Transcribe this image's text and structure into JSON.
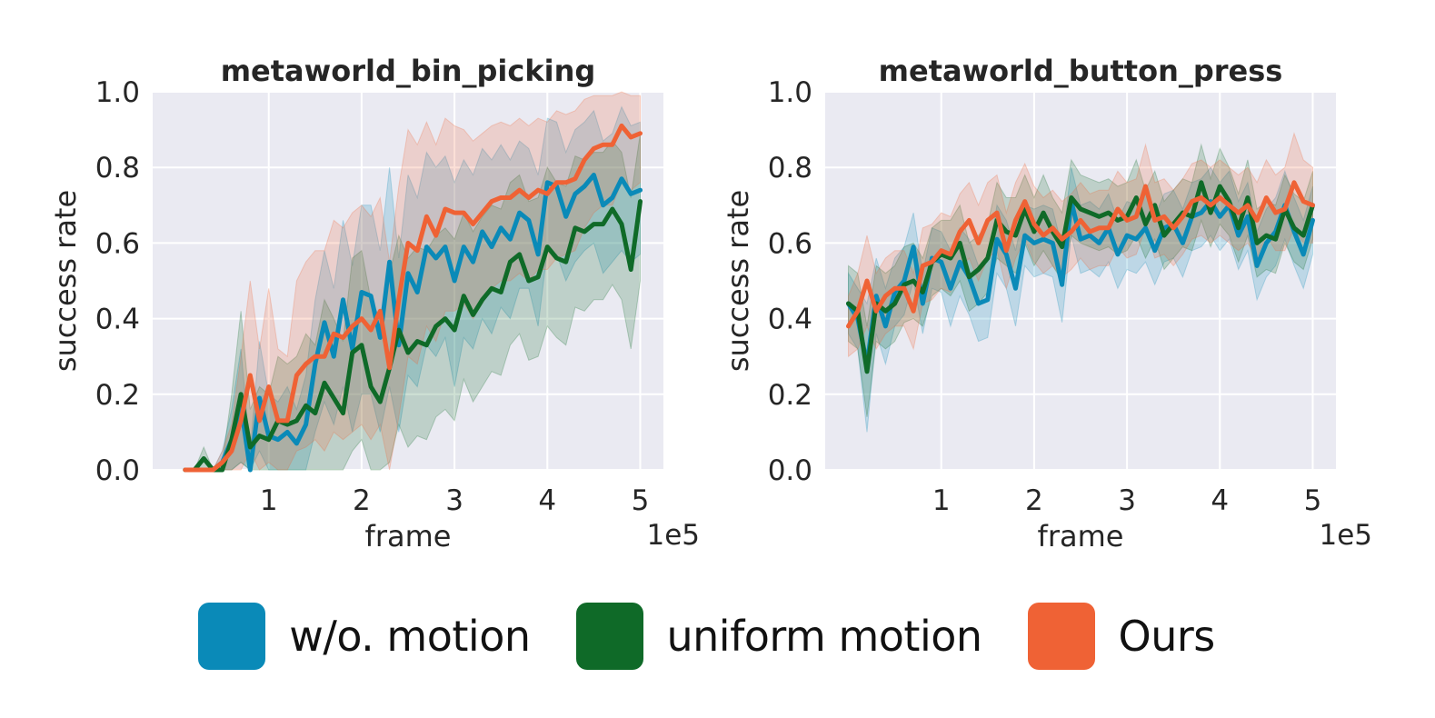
{
  "legend": {
    "items": [
      {
        "label": "w/o. motion",
        "color": "#0a8ab8"
      },
      {
        "label": "uniform motion",
        "color": "#0f6a28"
      },
      {
        "label": "Ours",
        "color": "#ef6235"
      }
    ]
  },
  "chart_data": [
    {
      "type": "line",
      "title": "metaworld_bin_picking",
      "xlabel": "frame",
      "ylabel": "success rate",
      "x_multiplier_label": "1e5",
      "xlim": [
        -0.25,
        5.25
      ],
      "ylim": [
        0.0,
        1.0
      ],
      "xticks": [
        "1",
        "2",
        "3",
        "4",
        "5"
      ],
      "yticks": [
        "0.0",
        "0.2",
        "0.4",
        "0.6",
        "0.8",
        "1.0"
      ],
      "grid": true,
      "x": [
        0.1,
        0.2,
        0.3,
        0.4,
        0.5,
        0.6,
        0.7,
        0.8,
        0.9,
        1.0,
        1.1,
        1.2,
        1.3,
        1.4,
        1.5,
        1.6,
        1.7,
        1.8,
        1.9,
        2.0,
        2.1,
        2.2,
        2.3,
        2.4,
        2.5,
        2.6,
        2.7,
        2.8,
        2.9,
        3.0,
        3.1,
        3.2,
        3.3,
        3.4,
        3.5,
        3.6,
        3.7,
        3.8,
        3.9,
        4.0,
        4.1,
        4.2,
        4.3,
        4.4,
        4.5,
        4.6,
        4.7,
        4.8,
        4.9,
        5.0
      ],
      "series": [
        {
          "name": "w/o. motion",
          "color": "#0a8ab8",
          "values": [
            0,
            0,
            0,
            0,
            0.02,
            0.08,
            0.17,
            0,
            0.19,
            0.09,
            0.08,
            0.1,
            0.07,
            0.12,
            0.28,
            0.39,
            0.3,
            0.45,
            0.32,
            0.47,
            0.46,
            0.35,
            0.55,
            0.33,
            0.52,
            0.47,
            0.59,
            0.56,
            0.59,
            0.5,
            0.59,
            0.55,
            0.63,
            0.59,
            0.64,
            0.61,
            0.68,
            0.66,
            0.57,
            0.76,
            0.75,
            0.67,
            0.73,
            0.75,
            0.78,
            0.7,
            0.72,
            0.77,
            0.73,
            0.74
          ],
          "lower": [
            0,
            0,
            0,
            0,
            0,
            0,
            0.02,
            0,
            0.05,
            0,
            0,
            0,
            0,
            0,
            0.1,
            0.18,
            0.12,
            0.22,
            0.1,
            0.2,
            0.2,
            0.1,
            0.22,
            0.1,
            0.25,
            0.22,
            0.33,
            0.3,
            0.35,
            0.22,
            0.35,
            0.32,
            0.4,
            0.36,
            0.43,
            0.4,
            0.48,
            0.48,
            0.38,
            0.58,
            0.57,
            0.5,
            0.55,
            0.58,
            0.6,
            0.52,
            0.55,
            0.58,
            0.55,
            0.57
          ],
          "upper": [
            0,
            0,
            0,
            0,
            0.05,
            0.16,
            0.32,
            0.05,
            0.34,
            0.2,
            0.18,
            0.22,
            0.16,
            0.25,
            0.45,
            0.58,
            0.48,
            0.66,
            0.54,
            0.7,
            0.7,
            0.58,
            0.8,
            0.56,
            0.78,
            0.72,
            0.84,
            0.8,
            0.83,
            0.76,
            0.82,
            0.78,
            0.85,
            0.82,
            0.86,
            0.82,
            0.87,
            0.85,
            0.78,
            0.93,
            0.92,
            0.84,
            0.9,
            0.92,
            0.95,
            0.87,
            0.89,
            0.96,
            0.91,
            0.92
          ]
        },
        {
          "name": "uniform motion",
          "color": "#0f6a28",
          "values": [
            0,
            0,
            0.03,
            0,
            0,
            0.08,
            0.2,
            0.06,
            0.09,
            0.08,
            0.13,
            0.12,
            0.13,
            0.17,
            0.15,
            0.23,
            0.19,
            0.15,
            0.31,
            0.33,
            0.22,
            0.18,
            0.27,
            0.37,
            0.31,
            0.34,
            0.33,
            0.38,
            0.4,
            0.37,
            0.46,
            0.41,
            0.45,
            0.48,
            0.47,
            0.55,
            0.57,
            0.5,
            0.51,
            0.59,
            0.56,
            0.55,
            0.64,
            0.63,
            0.65,
            0.65,
            0.69,
            0.65,
            0.53,
            0.71
          ],
          "lower": [
            0,
            0,
            0,
            0,
            0,
            0,
            0.02,
            0,
            0,
            0,
            0,
            0,
            0,
            0,
            0,
            0,
            0,
            0,
            0.05,
            0.08,
            0,
            0,
            0.02,
            0.12,
            0.06,
            0.09,
            0.08,
            0.14,
            0.16,
            0.13,
            0.24,
            0.18,
            0.22,
            0.26,
            0.25,
            0.33,
            0.36,
            0.29,
            0.3,
            0.38,
            0.35,
            0.33,
            0.43,
            0.42,
            0.45,
            0.45,
            0.49,
            0.45,
            0.32,
            0.5
          ],
          "upper": [
            0,
            0,
            0.06,
            0,
            0.02,
            0.2,
            0.42,
            0.16,
            0.22,
            0.2,
            0.3,
            0.28,
            0.3,
            0.36,
            0.33,
            0.45,
            0.4,
            0.34,
            0.56,
            0.58,
            0.45,
            0.4,
            0.52,
            0.62,
            0.56,
            0.59,
            0.58,
            0.62,
            0.64,
            0.61,
            0.68,
            0.63,
            0.67,
            0.7,
            0.69,
            0.76,
            0.78,
            0.71,
            0.72,
            0.8,
            0.76,
            0.75,
            0.83,
            0.82,
            0.84,
            0.84,
            0.87,
            0.84,
            0.72,
            0.89
          ]
        },
        {
          "name": "Ours",
          "color": "#ef6235",
          "values": [
            0,
            0,
            0,
            0,
            0.02,
            0.05,
            0.13,
            0.25,
            0.13,
            0.22,
            0.13,
            0.13,
            0.25,
            0.28,
            0.3,
            0.3,
            0.36,
            0.35,
            0.38,
            0.4,
            0.37,
            0.42,
            0.27,
            0.45,
            0.6,
            0.58,
            0.67,
            0.62,
            0.69,
            0.68,
            0.68,
            0.65,
            0.68,
            0.71,
            0.72,
            0.72,
            0.74,
            0.72,
            0.74,
            0.73,
            0.76,
            0.76,
            0.77,
            0.82,
            0.85,
            0.86,
            0.86,
            0.91,
            0.88,
            0.89
          ],
          "lower": [
            0,
            0,
            0,
            0,
            0,
            0,
            0,
            0.05,
            0,
            0.02,
            0,
            0,
            0.05,
            0.06,
            0.08,
            0.05,
            0.1,
            0.08,
            0.1,
            0.12,
            0.08,
            0.12,
            0,
            0.14,
            0.3,
            0.28,
            0.38,
            0.34,
            0.42,
            0.42,
            0.44,
            0.4,
            0.44,
            0.48,
            0.5,
            0.5,
            0.52,
            0.5,
            0.53,
            0.53,
            0.56,
            0.57,
            0.58,
            0.64,
            0.68,
            0.7,
            0.7,
            0.76,
            0.74,
            0.76
          ],
          "upper": [
            0,
            0,
            0,
            0,
            0.05,
            0.12,
            0.3,
            0.5,
            0.32,
            0.48,
            0.32,
            0.3,
            0.5,
            0.55,
            0.58,
            0.58,
            0.66,
            0.64,
            0.68,
            0.7,
            0.67,
            0.72,
            0.55,
            0.75,
            0.9,
            0.86,
            0.92,
            0.86,
            0.93,
            0.91,
            0.9,
            0.87,
            0.89,
            0.91,
            0.92,
            0.91,
            0.93,
            0.91,
            0.93,
            0.92,
            0.95,
            0.94,
            0.95,
            0.98,
            0.99,
            0.99,
            0.99,
            1.0,
            0.99,
            0.99
          ]
        }
      ]
    },
    {
      "type": "line",
      "title": "metaworld_button_press",
      "xlabel": "frame",
      "ylabel": "success rate",
      "x_multiplier_label": "1e5",
      "xlim": [
        -0.25,
        5.25
      ],
      "ylim": [
        0.0,
        1.0
      ],
      "xticks": [
        "1",
        "2",
        "3",
        "4",
        "5"
      ],
      "yticks": [
        "0.0",
        "0.2",
        "0.4",
        "0.6",
        "0.8",
        "1.0"
      ],
      "grid": true,
      "x": [
        0.0,
        0.1,
        0.2,
        0.3,
        0.4,
        0.5,
        0.6,
        0.7,
        0.8,
        0.9,
        1.0,
        1.1,
        1.2,
        1.3,
        1.4,
        1.5,
        1.6,
        1.7,
        1.8,
        1.9,
        2.0,
        2.1,
        2.2,
        2.3,
        2.4,
        2.5,
        2.6,
        2.7,
        2.8,
        2.9,
        3.0,
        3.1,
        3.2,
        3.3,
        3.4,
        3.5,
        3.6,
        3.7,
        3.8,
        3.9,
        4.0,
        4.1,
        4.2,
        4.3,
        4.4,
        4.5,
        4.6,
        4.7,
        4.8,
        4.9,
        5.0
      ],
      "series": [
        {
          "name": "w/o. motion",
          "color": "#0a8ab8",
          "values": [
            0.44,
            0.4,
            0.28,
            0.46,
            0.38,
            0.47,
            0.5,
            0.59,
            0.44,
            0.56,
            0.55,
            0.48,
            0.55,
            0.51,
            0.44,
            0.45,
            0.61,
            0.57,
            0.48,
            0.62,
            0.6,
            0.61,
            0.6,
            0.49,
            0.71,
            0.61,
            0.62,
            0.6,
            0.64,
            0.57,
            0.62,
            0.61,
            0.64,
            0.58,
            0.64,
            0.65,
            0.6,
            0.67,
            0.68,
            0.71,
            0.67,
            0.7,
            0.62,
            0.67,
            0.54,
            0.6,
            0.63,
            0.7,
            0.63,
            0.57,
            0.66
          ],
          "lower": [
            0.36,
            0.32,
            0.1,
            0.36,
            0.28,
            0.38,
            0.41,
            0.5,
            0.36,
            0.48,
            0.47,
            0.38,
            0.46,
            0.41,
            0.34,
            0.35,
            0.52,
            0.48,
            0.38,
            0.54,
            0.51,
            0.52,
            0.51,
            0.39,
            0.62,
            0.52,
            0.53,
            0.51,
            0.55,
            0.48,
            0.53,
            0.52,
            0.55,
            0.49,
            0.55,
            0.56,
            0.51,
            0.58,
            0.59,
            0.62,
            0.58,
            0.61,
            0.53,
            0.58,
            0.45,
            0.51,
            0.54,
            0.61,
            0.54,
            0.48,
            0.57
          ],
          "upper": [
            0.52,
            0.48,
            0.44,
            0.56,
            0.48,
            0.56,
            0.59,
            0.68,
            0.52,
            0.64,
            0.63,
            0.58,
            0.64,
            0.61,
            0.54,
            0.55,
            0.7,
            0.66,
            0.58,
            0.7,
            0.69,
            0.7,
            0.69,
            0.59,
            0.8,
            0.7,
            0.71,
            0.69,
            0.73,
            0.66,
            0.71,
            0.7,
            0.73,
            0.67,
            0.73,
            0.74,
            0.69,
            0.76,
            0.77,
            0.8,
            0.76,
            0.79,
            0.71,
            0.76,
            0.63,
            0.69,
            0.72,
            0.79,
            0.72,
            0.66,
            0.75
          ]
        },
        {
          "name": "uniform motion",
          "color": "#0f6a28",
          "values": [
            0.44,
            0.42,
            0.26,
            0.44,
            0.42,
            0.44,
            0.49,
            0.5,
            0.47,
            0.55,
            0.57,
            0.56,
            0.6,
            0.51,
            0.53,
            0.56,
            0.66,
            0.63,
            0.62,
            0.69,
            0.63,
            0.68,
            0.63,
            0.59,
            0.72,
            0.69,
            0.68,
            0.67,
            0.68,
            0.66,
            0.67,
            0.72,
            0.65,
            0.7,
            0.62,
            0.65,
            0.68,
            0.67,
            0.76,
            0.68,
            0.75,
            0.71,
            0.64,
            0.72,
            0.6,
            0.62,
            0.61,
            0.69,
            0.64,
            0.62,
            0.7
          ],
          "lower": [
            0.34,
            0.32,
            0.14,
            0.34,
            0.32,
            0.34,
            0.39,
            0.4,
            0.38,
            0.46,
            0.48,
            0.46,
            0.5,
            0.42,
            0.44,
            0.47,
            0.56,
            0.54,
            0.52,
            0.6,
            0.54,
            0.58,
            0.54,
            0.5,
            0.62,
            0.6,
            0.59,
            0.58,
            0.59,
            0.57,
            0.58,
            0.62,
            0.56,
            0.61,
            0.53,
            0.56,
            0.59,
            0.58,
            0.66,
            0.59,
            0.65,
            0.62,
            0.55,
            0.62,
            0.51,
            0.53,
            0.52,
            0.6,
            0.55,
            0.53,
            0.61
          ],
          "upper": [
            0.54,
            0.52,
            0.38,
            0.54,
            0.52,
            0.54,
            0.59,
            0.6,
            0.56,
            0.64,
            0.66,
            0.66,
            0.7,
            0.6,
            0.62,
            0.65,
            0.76,
            0.72,
            0.72,
            0.78,
            0.72,
            0.78,
            0.72,
            0.68,
            0.82,
            0.78,
            0.77,
            0.76,
            0.77,
            0.75,
            0.76,
            0.82,
            0.74,
            0.79,
            0.71,
            0.74,
            0.77,
            0.76,
            0.86,
            0.77,
            0.85,
            0.8,
            0.73,
            0.82,
            0.69,
            0.71,
            0.7,
            0.78,
            0.73,
            0.71,
            0.79
          ]
        },
        {
          "name": "Ours",
          "color": "#ef6235",
          "values": [
            0.38,
            0.42,
            0.5,
            0.42,
            0.46,
            0.48,
            0.48,
            0.42,
            0.54,
            0.55,
            0.58,
            0.57,
            0.63,
            0.66,
            0.6,
            0.66,
            0.68,
            0.58,
            0.66,
            0.71,
            0.65,
            0.62,
            0.64,
            0.61,
            0.63,
            0.66,
            0.63,
            0.64,
            0.64,
            0.69,
            0.66,
            0.67,
            0.75,
            0.66,
            0.67,
            0.64,
            0.67,
            0.71,
            0.72,
            0.7,
            0.72,
            0.7,
            0.68,
            0.7,
            0.66,
            0.72,
            0.68,
            0.69,
            0.76,
            0.71,
            0.7
          ],
          "lower": [
            0.3,
            0.32,
            0.38,
            0.32,
            0.36,
            0.38,
            0.38,
            0.32,
            0.44,
            0.45,
            0.48,
            0.47,
            0.53,
            0.56,
            0.5,
            0.56,
            0.58,
            0.48,
            0.56,
            0.61,
            0.55,
            0.52,
            0.54,
            0.51,
            0.53,
            0.56,
            0.53,
            0.54,
            0.54,
            0.59,
            0.56,
            0.57,
            0.64,
            0.56,
            0.57,
            0.54,
            0.57,
            0.61,
            0.62,
            0.6,
            0.62,
            0.6,
            0.58,
            0.6,
            0.56,
            0.62,
            0.58,
            0.58,
            0.64,
            0.6,
            0.6
          ],
          "upper": [
            0.46,
            0.52,
            0.62,
            0.52,
            0.56,
            0.58,
            0.58,
            0.52,
            0.64,
            0.65,
            0.68,
            0.67,
            0.73,
            0.76,
            0.7,
            0.76,
            0.78,
            0.68,
            0.76,
            0.81,
            0.75,
            0.72,
            0.74,
            0.71,
            0.73,
            0.76,
            0.73,
            0.74,
            0.74,
            0.79,
            0.76,
            0.77,
            0.86,
            0.76,
            0.77,
            0.74,
            0.77,
            0.81,
            0.82,
            0.8,
            0.82,
            0.8,
            0.78,
            0.8,
            0.76,
            0.82,
            0.78,
            0.8,
            0.89,
            0.82,
            0.8
          ]
        }
      ]
    }
  ]
}
